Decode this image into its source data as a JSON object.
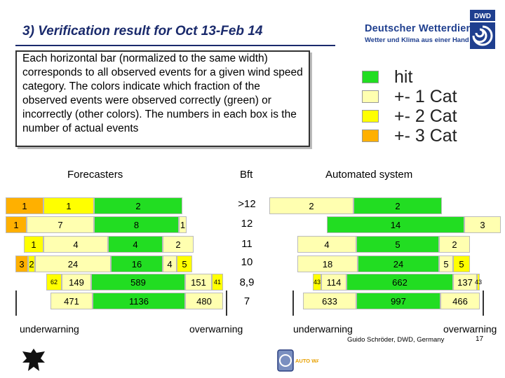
{
  "header": {
    "title": "3) Verification result for Oct 13-Feb 14",
    "brand_name": "Deutscher Wetterdienst",
    "brand_tagline": "Wetter und Klima aus einer Hand",
    "logo_text": "DWD"
  },
  "description": "Each horizontal bar (normalized to the same width) corresponds to all observed events for a given wind speed category. The colors indicate which fraction of the observed events were observed correctly (green) or incorrectly (other colors). The numbers in each box is the number of actual events",
  "legend": [
    {
      "label": "hit",
      "color": "#22dd22"
    },
    {
      "label": "+- 1 Cat",
      "color": "#ffffb0"
    },
    {
      "label": "+- 2 Cat",
      "color": "#ffff00"
    },
    {
      "label": "+- 3 Cat",
      "color": "#ffb000"
    }
  ],
  "columns": {
    "forecasters": "Forecasters",
    "bft": "Bft",
    "automated": "Automated system"
  },
  "chart_data": {
    "type": "bar",
    "categories": [
      ">12",
      "12",
      "11",
      "10",
      "8,9",
      "7"
    ],
    "colors": {
      "hit": "#22dd22",
      "cat1": "#ffffb0",
      "cat2": "#ffff00",
      "cat3": "#ffb000"
    },
    "forecasters": [
      [
        {
          "v": "1",
          "c": "cat3"
        },
        {
          "v": "1",
          "c": "cat2"
        },
        {
          "v": "2",
          "c": "hit"
        }
      ],
      [
        {
          "v": "1",
          "c": "cat3"
        },
        {
          "v": "7",
          "c": "cat1"
        },
        {
          "v": "8",
          "c": "hit"
        },
        {
          "v": "1",
          "c": "cat1"
        }
      ],
      [
        {
          "v": "1",
          "c": "cat2"
        },
        {
          "v": "4",
          "c": "cat1"
        },
        {
          "v": "4",
          "c": "hit"
        },
        {
          "v": "2",
          "c": "cat1"
        }
      ],
      [
        {
          "v": "3",
          "c": "cat3"
        },
        {
          "v": "2",
          "c": "cat2"
        },
        {
          "v": "24",
          "c": "cat1"
        },
        {
          "v": "16",
          "c": "hit"
        },
        {
          "v": "4",
          "c": "cat1"
        },
        {
          "v": "5",
          "c": "cat2"
        }
      ],
      [
        {
          "v": "62",
          "c": "cat2"
        },
        {
          "v": "149",
          "c": "cat1"
        },
        {
          "v": "589",
          "c": "hit"
        },
        {
          "v": "151",
          "c": "cat1"
        },
        {
          "v": "41",
          "c": "cat2"
        }
      ],
      [
        {
          "v": "471",
          "c": "cat1"
        },
        {
          "v": "1136",
          "c": "hit"
        },
        {
          "v": "480",
          "c": "cat1"
        }
      ]
    ],
    "automated": [
      [
        {
          "v": "2",
          "c": "cat1"
        },
        {
          "v": "2",
          "c": "hit"
        }
      ],
      [
        {
          "v": "14",
          "c": "hit"
        },
        {
          "v": "3",
          "c": "cat1"
        }
      ],
      [
        {
          "v": "4",
          "c": "cat1"
        },
        {
          "v": "5",
          "c": "hit"
        },
        {
          "v": "2",
          "c": "cat1"
        }
      ],
      [
        {
          "v": "18",
          "c": "cat1"
        },
        {
          "v": "24",
          "c": "hit"
        },
        {
          "v": "5",
          "c": "cat1"
        },
        {
          "v": "5",
          "c": "cat2"
        }
      ],
      [
        {
          "v": "43",
          "c": "cat2"
        },
        {
          "v": "114",
          "c": "cat1"
        },
        {
          "v": "662",
          "c": "hit"
        },
        {
          "v": "137",
          "c": "cat1"
        },
        {
          "v": "43",
          "c": "cat2"
        }
      ],
      [
        {
          "v": "633",
          "c": "cat1"
        },
        {
          "v": "997",
          "c": "hit"
        },
        {
          "v": "466",
          "c": "cat1"
        }
      ]
    ]
  },
  "axis_labels": {
    "left_under": "underwarning",
    "left_over": "overwarning",
    "right_under": "underwarning",
    "right_over": "overwarning"
  },
  "footer": {
    "credit": "Guido Schröder, DWD, Germany",
    "page": "17",
    "autowarn_text": "AUTO WARN"
  }
}
